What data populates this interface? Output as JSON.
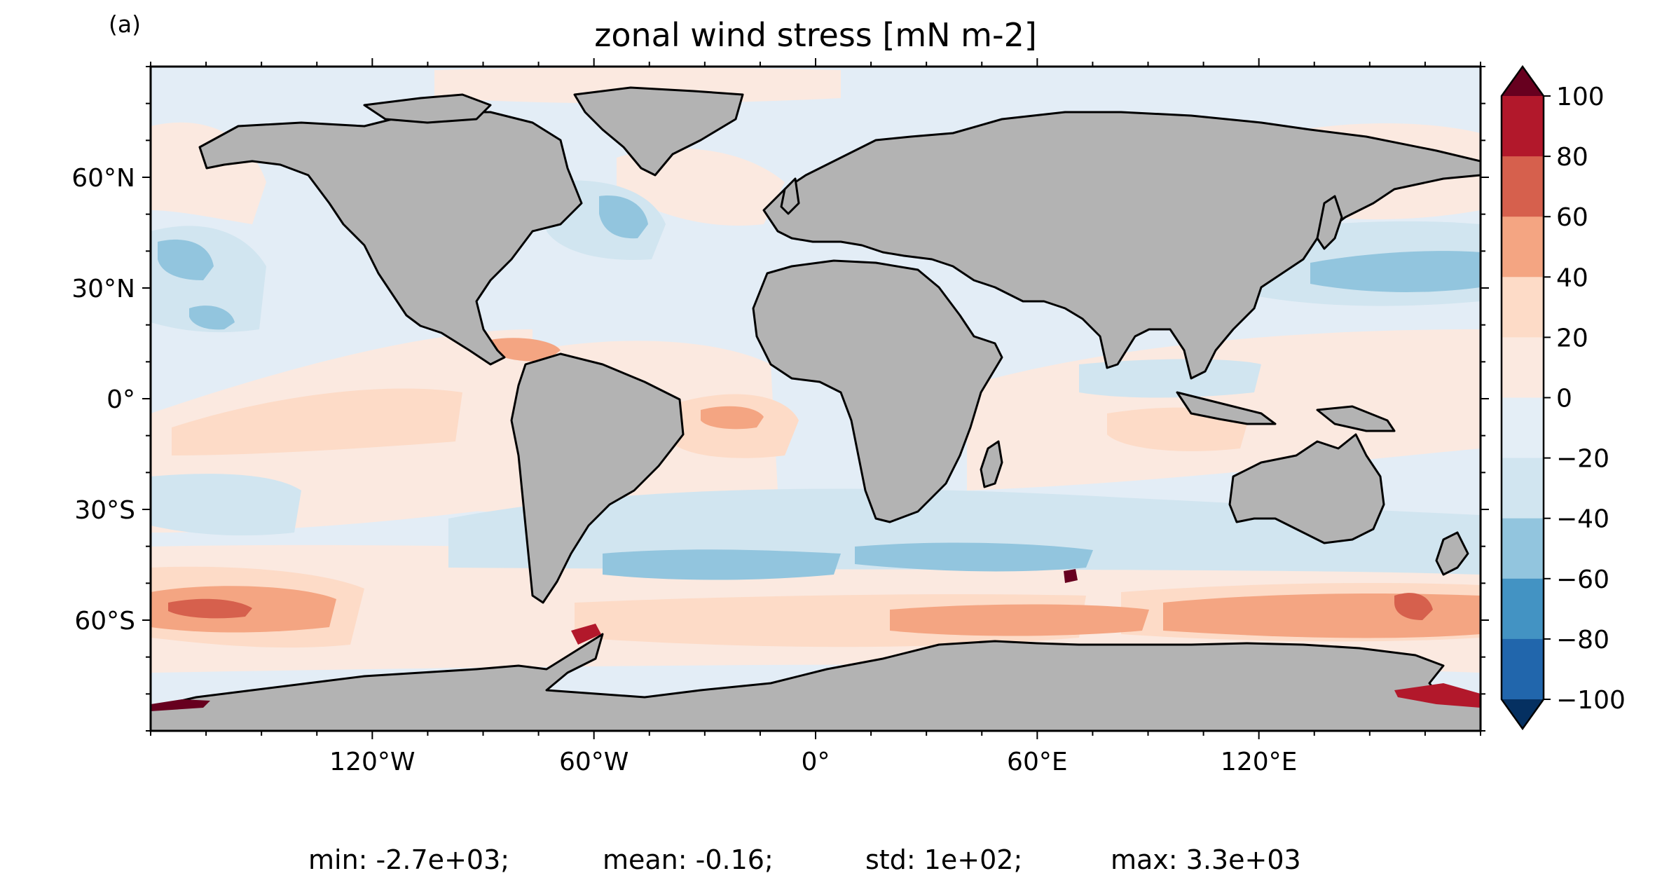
{
  "panel_label": "(a)",
  "title": "zonal wind stress [mN m-2]",
  "x_ticks": [
    "120°W",
    "60°W",
    "0°",
    "60°E",
    "120°E"
  ],
  "y_ticks": [
    "60°N",
    "30°N",
    "0°",
    "30°S",
    "60°S"
  ],
  "colorbar": {
    "ticks": [
      "100",
      "80",
      "60",
      "40",
      "20",
      "0",
      "−20",
      "−40",
      "−60",
      "−80",
      "−100"
    ],
    "colors": [
      "#67001f",
      "#b2182b",
      "#d6604d",
      "#f4a582",
      "#fddbc7",
      "#fbe9e0",
      "#e4eef6",
      "#d1e5f0",
      "#92c5de",
      "#4393c3",
      "#2166ac",
      "#053061"
    ],
    "extend": "both"
  },
  "colors": {
    "land": "#b3b3b3",
    "ocean_background": "#e3edf6",
    "coastline": "#000000"
  },
  "stats": {
    "min": "min: -2.7e+03;",
    "mean": "mean: -0.16;",
    "std": "std: 1e+02;",
    "max": "max: 3.3e+03"
  }
}
